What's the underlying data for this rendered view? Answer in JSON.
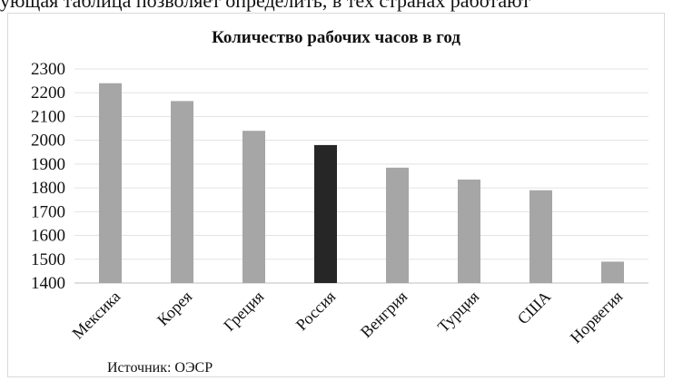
{
  "cut_text": "ующая таблица позволяет определить, в тех странах работают",
  "source_note": "Источник: ОЭСР",
  "chart_data": {
    "type": "bar",
    "title": "Количество рабочих часов в год",
    "xlabel": "",
    "ylabel": "",
    "ylim": [
      1400,
      2300
    ],
    "yticks": [
      1400,
      1500,
      1600,
      1700,
      1800,
      1900,
      2000,
      2100,
      2200,
      2300
    ],
    "grid": true,
    "categories": [
      "Мексика",
      "Корея",
      "Греция",
      "Россия",
      "Венгрия",
      "Турция",
      "США",
      "Норвегия"
    ],
    "values": [
      2240,
      2165,
      2040,
      1980,
      1885,
      1835,
      1790,
      1490
    ],
    "bar_color": "#a6a6a6",
    "highlight_color": "#262626",
    "highlight_category": "Россия"
  }
}
